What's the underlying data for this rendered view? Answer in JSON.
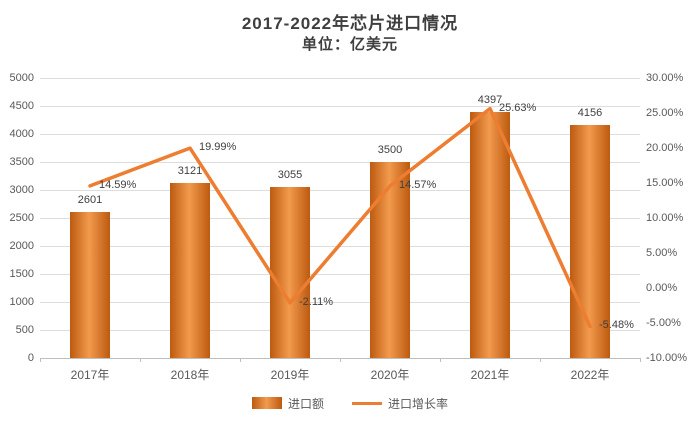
{
  "chart_data": {
    "type": "combo",
    "title": "2017-2022年芯片进口情况",
    "subtitle": "单位：亿美元",
    "categories": [
      "2017年",
      "2018年",
      "2019年",
      "2020年",
      "2021年",
      "2022年"
    ],
    "series": [
      {
        "name": "进口额",
        "type": "bar",
        "axis": "left",
        "values": [
          2601,
          3121,
          3055,
          3500,
          4397,
          4156
        ],
        "labels": [
          "2601",
          "3121",
          "3055",
          "3500",
          "4397",
          "4156"
        ]
      },
      {
        "name": "进口增长率",
        "type": "line",
        "axis": "right",
        "values": [
          14.59,
          19.99,
          -2.11,
          14.57,
          25.63,
          -5.48
        ],
        "labels": [
          "14.59%",
          "19.99%",
          "-2.11%",
          "14.57%",
          "25.63%",
          "-5.48%"
        ]
      }
    ],
    "left_axis": {
      "min": 0,
      "max": 5000,
      "step": 500,
      "tick_labels": [
        "0",
        "500",
        "1000",
        "1500",
        "2000",
        "2500",
        "3000",
        "3500",
        "4000",
        "4500",
        "5000"
      ]
    },
    "right_axis": {
      "min": -10,
      "max": 30,
      "step": 5,
      "tick_labels": [
        "-10.00%",
        "-5.00%",
        "0.00%",
        "5.00%",
        "10.00%",
        "15.00%",
        "20.00%",
        "25.00%",
        "30.00%"
      ]
    },
    "grid": true,
    "legend_position": "bottom",
    "colors": {
      "bar_dark": "#bc5a10",
      "bar_light": "#f29a4d",
      "line": "#ed7d31",
      "grid": "#dddddd",
      "axis_text": "#595959",
      "label_text": "#3f3f3f"
    }
  }
}
